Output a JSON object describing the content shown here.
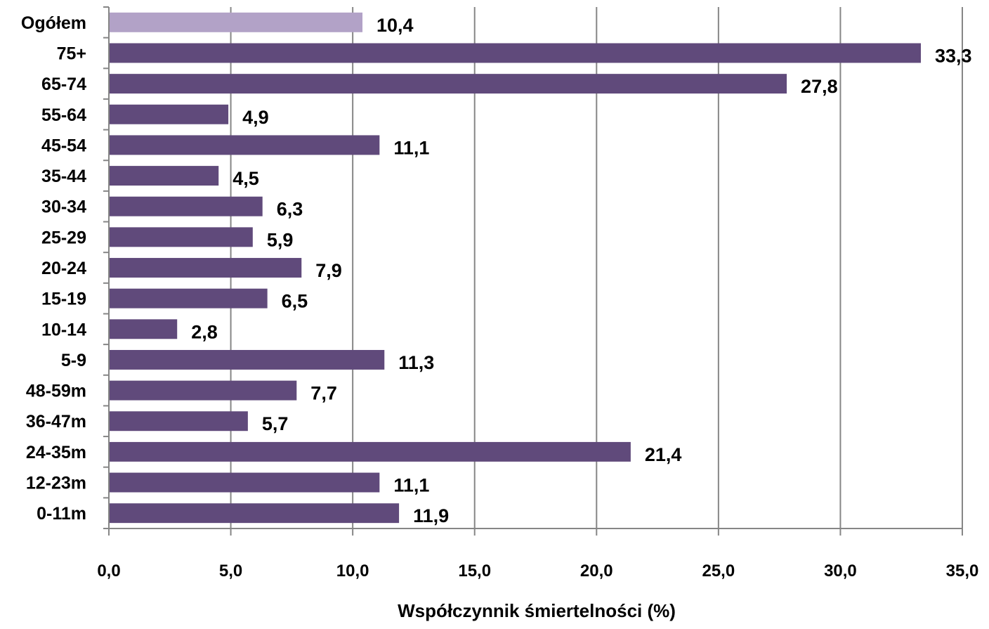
{
  "chart_data": {
    "type": "bar",
    "orientation": "horizontal",
    "categories": [
      "Ogółem",
      "75+",
      "65-74",
      "55-64",
      "45-54",
      "35-44",
      "30-34",
      "25-29",
      "20-24",
      "15-19",
      "10-14",
      "5-9",
      "48-59m",
      "36-47m",
      "24-35m",
      "12-23m",
      "0-11m"
    ],
    "values": [
      10.4,
      33.3,
      27.8,
      4.9,
      11.1,
      4.5,
      6.3,
      5.9,
      7.9,
      6.5,
      2.8,
      11.3,
      7.7,
      5.7,
      21.4,
      11.1,
      11.9
    ],
    "value_labels": [
      "10,4",
      "33,3",
      "27,8",
      "4,9",
      "11,1",
      "4,5",
      "6,3",
      "5,9",
      "7,9",
      "6,5",
      "2,8",
      "11,3",
      "7,7",
      "5,7",
      "21,4",
      "11,1",
      "11,9"
    ],
    "xlabel": "Współczynnik śmiertelności (%)",
    "ylabel": "",
    "xlim": [
      0,
      35
    ],
    "x_ticks": [
      0,
      5,
      10,
      15,
      20,
      25,
      30,
      35
    ],
    "x_tick_labels": [
      "0,0",
      "5,0",
      "10,0",
      "15,0",
      "20,0",
      "25,0",
      "30,0",
      "35,0"
    ],
    "grid": "vertical",
    "legend": "none",
    "colors": {
      "bar": "#604a7b",
      "highlight_bar": "#b2a2c7",
      "grid": "#868686",
      "axis": "#868686"
    },
    "highlight_category": "Ogółem"
  }
}
